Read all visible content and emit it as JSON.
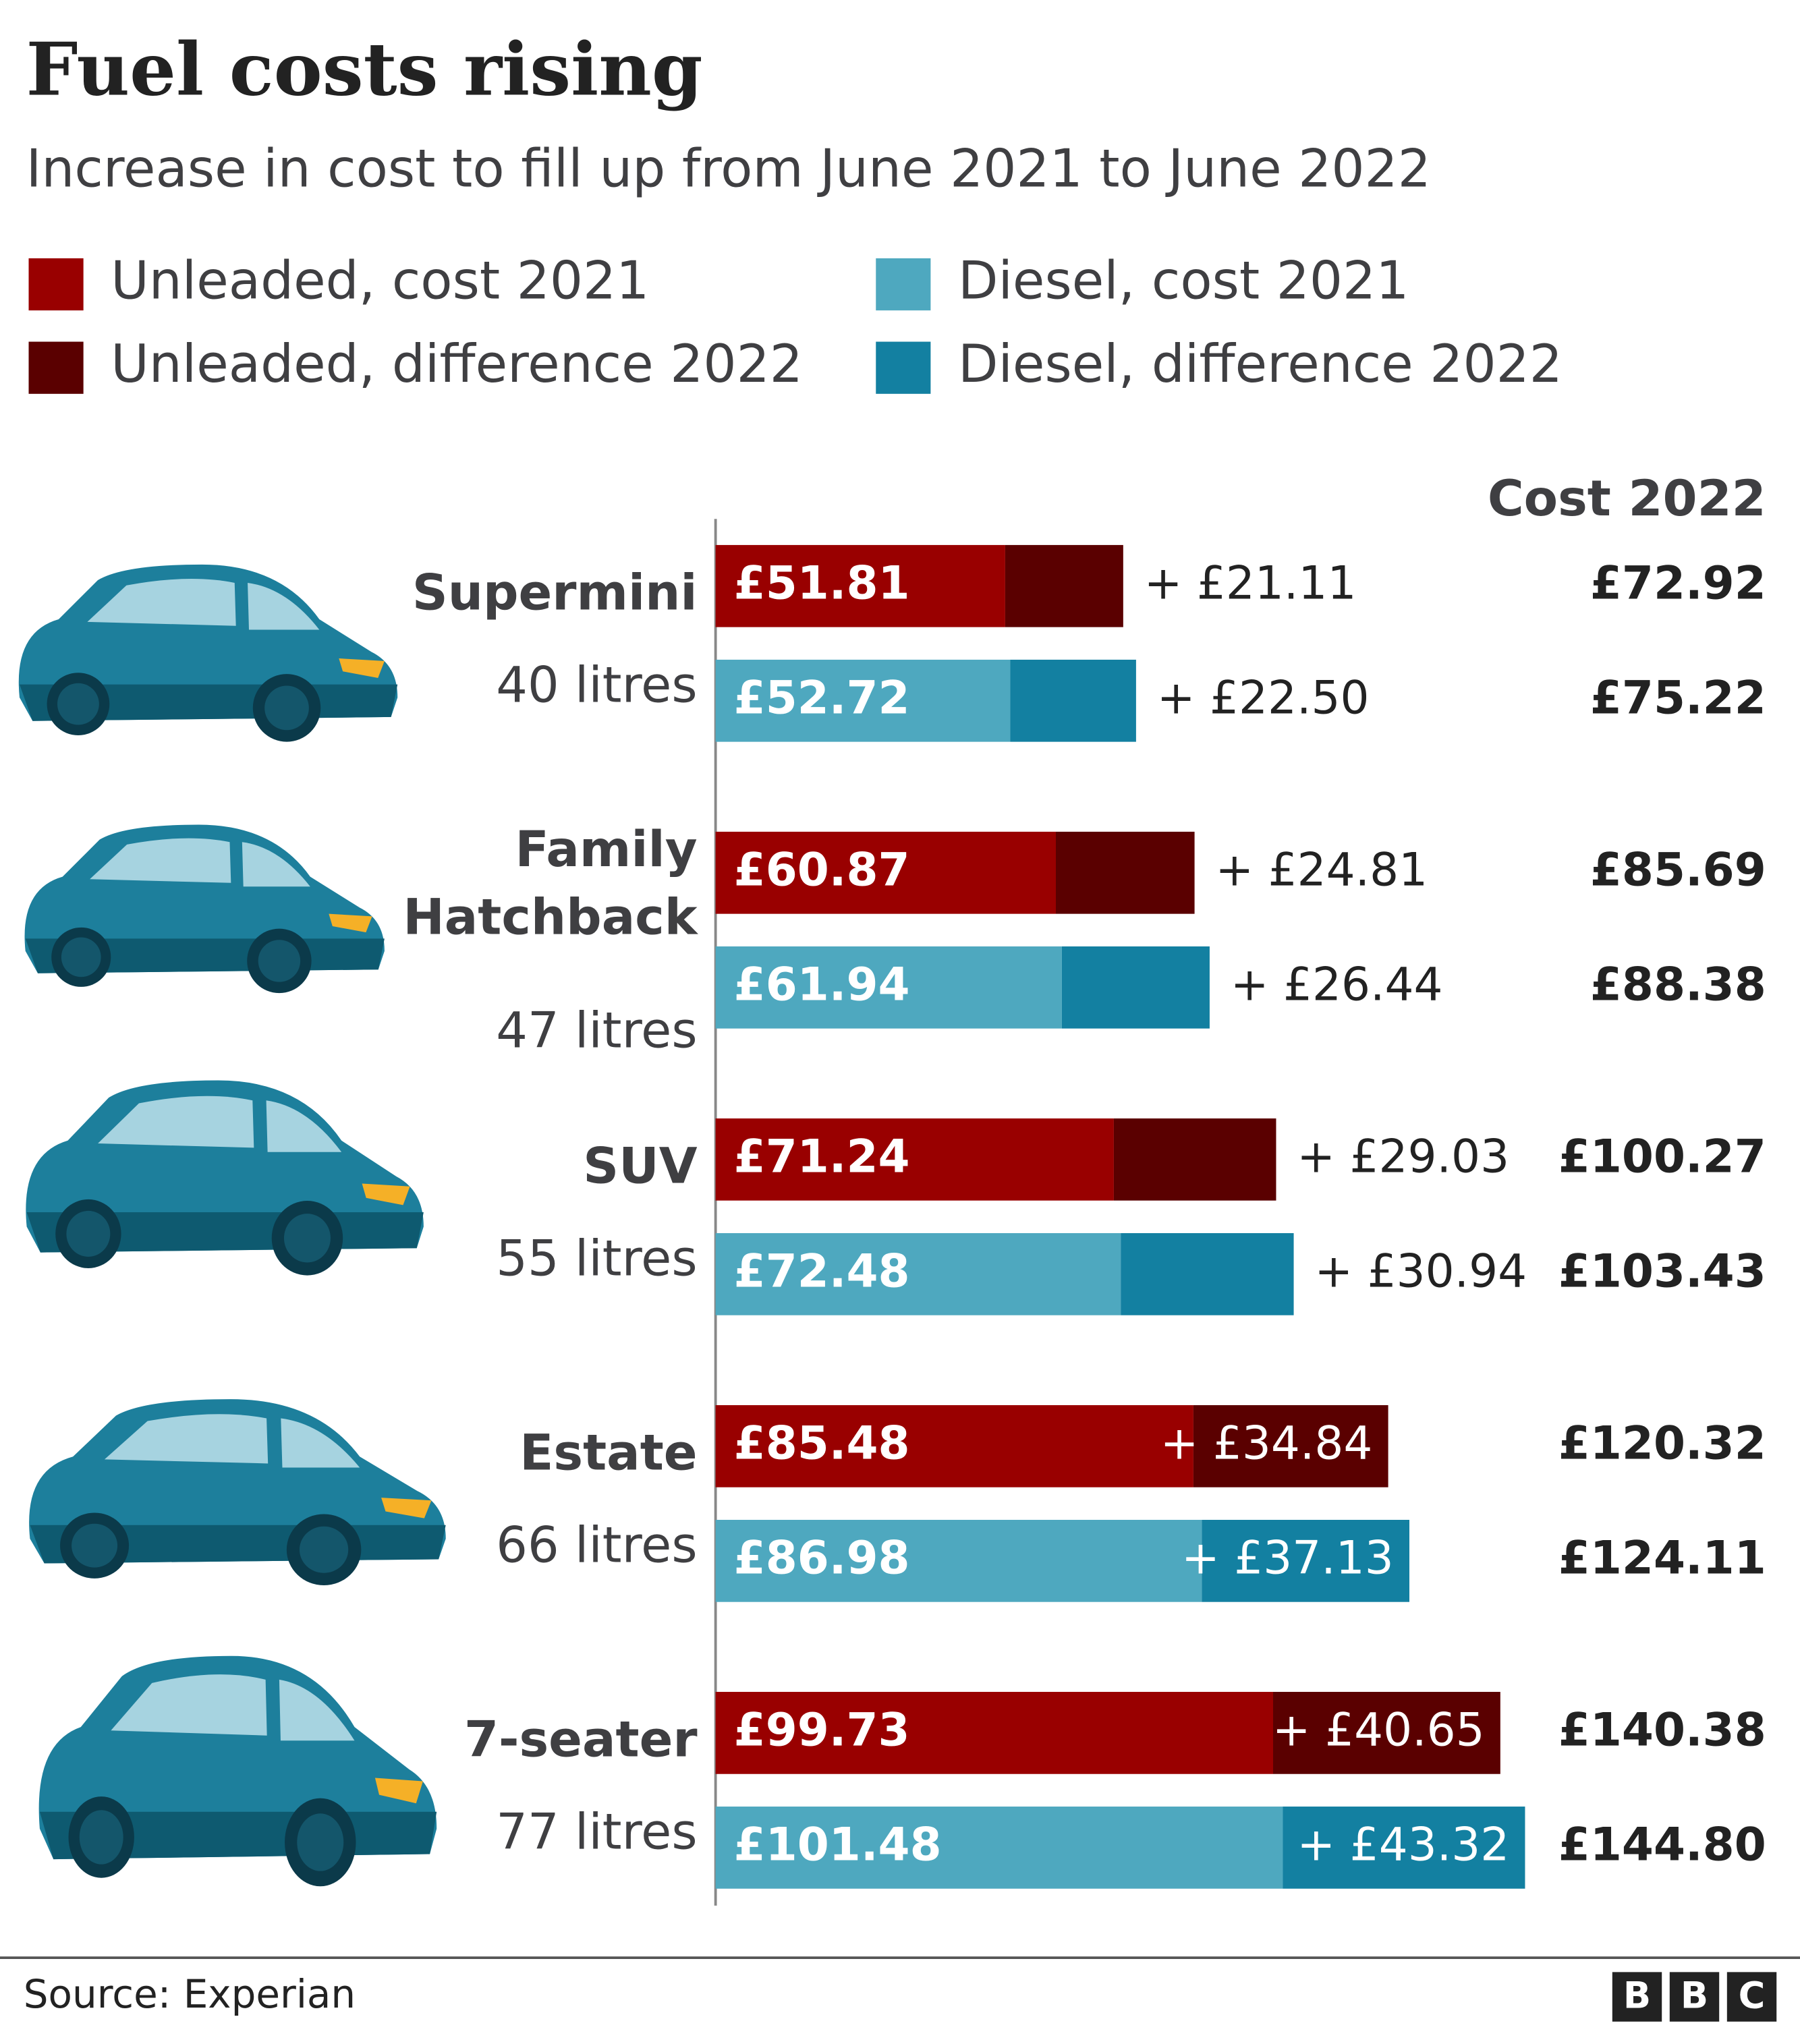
{
  "chart_data": {
    "type": "bar",
    "orientation": "horizontal",
    "stacked": true,
    "title": "Fuel costs rising",
    "subtitle": "Increase in cost to fill up from June 2021 to June 2022",
    "categories": [
      [
        "Supermini"
      ],
      [
        "Family",
        "Hatchback"
      ],
      [
        "SUV"
      ],
      [
        "Estate"
      ],
      [
        "7-seater"
      ]
    ],
    "sublabels": [
      "40 litres",
      "47 litres",
      "55 litres",
      "66 litres",
      "77 litres"
    ],
    "series": [
      {
        "name": "Unleaded, cost 2021",
        "color": "#990000",
        "values": [
          51.81,
          60.87,
          71.24,
          85.48,
          99.73
        ],
        "value_labels": [
          "£51.81",
          "£60.87",
          "£71.24",
          "£85.48",
          "£99.73"
        ]
      },
      {
        "name": "Unleaded, difference 2022",
        "color": "#5a0000",
        "values": [
          21.11,
          24.81,
          29.03,
          34.84,
          40.65
        ],
        "value_labels": [
          "+ £21.11",
          "+ £24.81",
          "+ £29.03",
          "+ £34.84",
          "+ £40.65"
        ]
      },
      {
        "name": "Diesel, cost 2021",
        "color": "#4ea8bf",
        "values": [
          52.72,
          61.94,
          72.48,
          86.98,
          101.48
        ],
        "value_labels": [
          "£52.72",
          "£61.94",
          "£72.48",
          "£86.98",
          "£101.48"
        ]
      },
      {
        "name": "Diesel, difference 2022",
        "color": "#1380a1",
        "values": [
          22.5,
          26.44,
          30.94,
          37.13,
          43.32
        ],
        "value_labels": [
          "+ £22.50",
          "+ £26.44",
          "+ £30.94",
          "+ £37.13",
          "+ £43.32"
        ]
      }
    ],
    "totals_label": "Cost 2022",
    "totals": [
      {
        "values": [
          72.92,
          85.69,
          100.27,
          120.32,
          140.38
        ],
        "value_labels": [
          "£72.92",
          "£85.69",
          "£100.27",
          "£120.32",
          "£140.38"
        ]
      },
      {
        "values": [
          75.22,
          88.38,
          103.43,
          124.11,
          144.8
        ],
        "value_labels": [
          "£75.22",
          "£88.38",
          "£103.43",
          "£124.11",
          "£144.80"
        ]
      }
    ],
    "source": "Source: Experian",
    "logo": [
      "B",
      "B",
      "C"
    ]
  }
}
